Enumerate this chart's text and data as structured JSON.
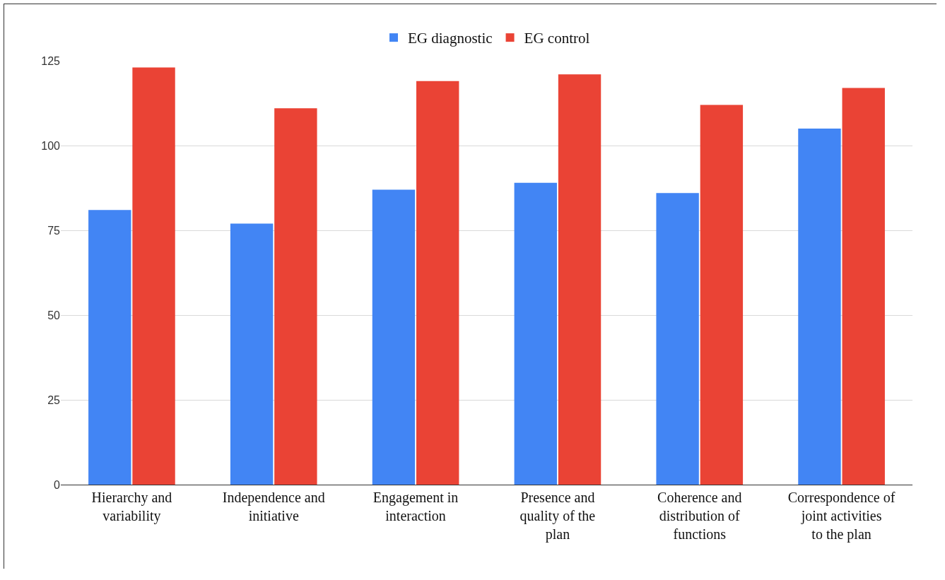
{
  "chart_data": {
    "type": "bar",
    "categories": [
      "Hierarchy and variability",
      "Independence and initiative",
      "Engagement in interaction",
      "Presence and quality of the plan",
      "Coherence and distribution of functions",
      "Correspondence of joint activities to the plan"
    ],
    "series": [
      {
        "name": "EG diagnostic",
        "color": "#4285f4",
        "values": [
          81,
          77,
          87,
          89,
          86,
          105
        ]
      },
      {
        "name": "EG control",
        "color": "#ea4335",
        "values": [
          123,
          111,
          119,
          121,
          112,
          117
        ]
      }
    ],
    "ylim": [
      0,
      125
    ],
    "yticks": [
      0,
      25,
      50,
      75,
      100,
      125
    ],
    "grid": "y",
    "legend": "top"
  }
}
